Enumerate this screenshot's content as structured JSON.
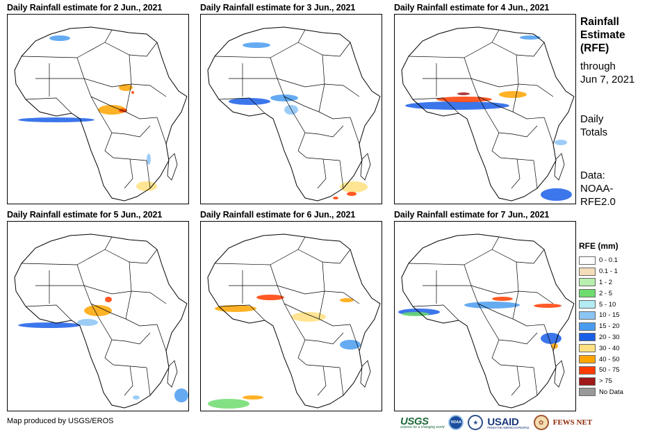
{
  "panels": [
    {
      "title": "Daily Rainfall estimate for 2 Jun., 2021"
    },
    {
      "title": "Daily Rainfall estimate for 3 Jun., 2021"
    },
    {
      "title": "Daily Rainfall estimate for 4 Jun., 2021"
    },
    {
      "title": "Daily Rainfall estimate for 5 Jun., 2021"
    },
    {
      "title": "Daily Rainfall estimate for 6 Jun., 2021"
    },
    {
      "title": "Daily Rainfall estimate for 7 Jun., 2021"
    }
  ],
  "side": {
    "title_line1": "Rainfall",
    "title_line2": "Estimate",
    "title_line3": "(RFE)",
    "through_line1": "through",
    "through_line2": "Jun 7, 2021",
    "daily_line1": "Daily",
    "daily_line2": "Totals",
    "data_line1": "Data:",
    "data_line2": "NOAA-",
    "data_line3": "RFE2.0"
  },
  "legend": {
    "title": "RFE (mm)",
    "items": [
      {
        "label": "0 - 0.1",
        "color": "#ffffff"
      },
      {
        "label": "0.1 - 1",
        "color": "#f3dcb8"
      },
      {
        "label": "1 - 2",
        "color": "#b8efb0"
      },
      {
        "label": "2 - 5",
        "color": "#6ddc6d"
      },
      {
        "label": "5 - 10",
        "color": "#b4ecf4"
      },
      {
        "label": "10 - 15",
        "color": "#8cc4f4"
      },
      {
        "label": "15 - 20",
        "color": "#4a9cf0"
      },
      {
        "label": "20 - 30",
        "color": "#1a5ee8"
      },
      {
        "label": "30 - 40",
        "color": "#ffe080"
      },
      {
        "label": "40 - 50",
        "color": "#ffa500"
      },
      {
        "label": "50 - 75",
        "color": "#ff3c00"
      },
      {
        "label": "> 75",
        "color": "#a01818"
      },
      {
        "label": "No Data",
        "color": "#999999"
      }
    ]
  },
  "credit": "Map produced by USGS/EROS",
  "logos": {
    "usgs": "USGS",
    "usgs_tagline": "science for a changing world",
    "noaa": "NOAA",
    "usaid": "USAID",
    "usaid_tagline": "FROM THE AMERICAN PEOPLE",
    "fews": "FEWS NET"
  }
}
